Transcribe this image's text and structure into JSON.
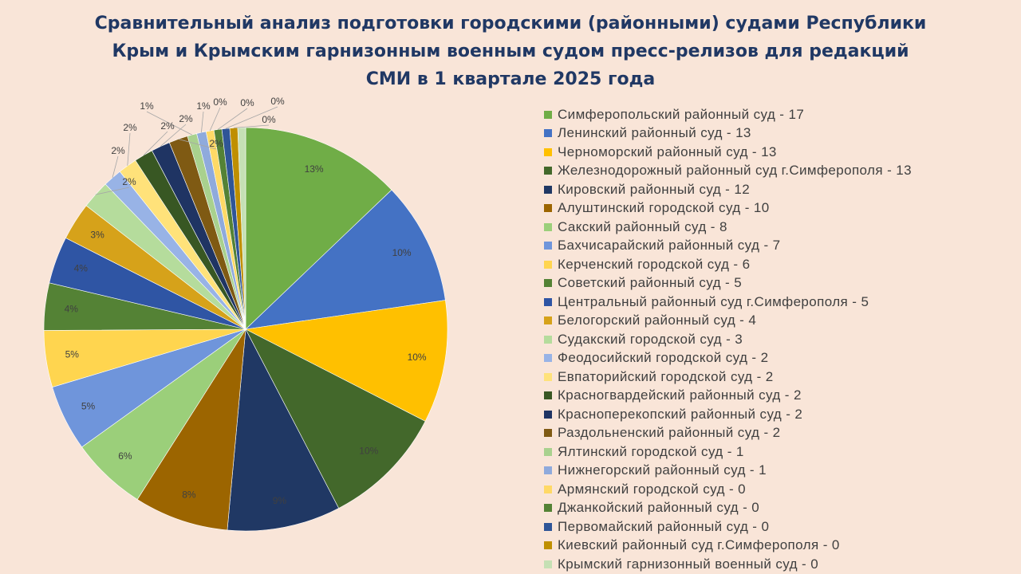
{
  "chart_data": {
    "type": "pie",
    "title_lines": [
      "Сравнительный анализ подготовки городскими (районными) судами Республики",
      "Крым и Крымским гарнизонным военным судом пресс-релизов для редакций",
      "СМИ в 1 квартале 2025 года"
    ],
    "legend_position": "right",
    "slices": [
      {
        "label": "Симферопольский районный суд - 17",
        "value": 17,
        "percent_label": "13%",
        "color": "#70ad47"
      },
      {
        "label": "Ленинский районный суд - 13",
        "value": 13,
        "percent_label": "10%",
        "color": "#4472c4"
      },
      {
        "label": "Черноморский районный суд - 13",
        "value": 13,
        "percent_label": "10%",
        "color": "#ffc000"
      },
      {
        "label": "Железнодорожный районный суд г.Симферополя - 13",
        "value": 13,
        "percent_label": "10%",
        "color": "#43682b"
      },
      {
        "label": "Кировский районный суд - 12",
        "value": 12,
        "percent_label": "9%",
        "color": "#203864"
      },
      {
        "label": "Алуштинский городской суд - 10",
        "value": 10,
        "percent_label": "8%",
        "color": "#9c6500"
      },
      {
        "label": "Сакский районный суд - 8",
        "value": 8,
        "percent_label": "6%",
        "color": "#9bcf7a"
      },
      {
        "label": "Бахчисарайский районный суд - 7",
        "value": 7,
        "percent_label": "5%",
        "color": "#6f95db"
      },
      {
        "label": "Керченский городской суд - 6",
        "value": 6,
        "percent_label": "5%",
        "color": "#ffd54f"
      },
      {
        "label": "Советский районный суд - 5",
        "value": 5,
        "percent_label": "4%",
        "color": "#548235"
      },
      {
        "label": "Центральный районный суд г.Симферополя - 5",
        "value": 5,
        "percent_label": "4%",
        "color": "#2f55a4"
      },
      {
        "label": "Белогорский районный суд - 4",
        "value": 4,
        "percent_label": "3%",
        "color": "#d6a21a"
      },
      {
        "label": "Судакский городской суд - 3",
        "value": 3,
        "percent_label": "2%",
        "color": "#b5dc9c"
      },
      {
        "label": "Феодосийский городской суд - 2",
        "value": 2,
        "percent_label": "2%",
        "color": "#98b3e6"
      },
      {
        "label": "Евпаторийский городской суд - 2",
        "value": 2,
        "percent_label": "2%",
        "color": "#ffe27a"
      },
      {
        "label": "Красногвардейский районный суд - 2",
        "value": 2,
        "percent_label": "2%",
        "color": "#385723"
      },
      {
        "label": "Красноперекопский районный суд - 2",
        "value": 2,
        "percent_label": "2%",
        "color": "#1f3463"
      },
      {
        "label": "Раздольненский районный суд - 2",
        "value": 2,
        "percent_label": "2%",
        "color": "#7f5a13"
      },
      {
        "label": "Ялтинский городской суд - 1",
        "value": 1,
        "percent_label": "1%",
        "color": "#a9d18e"
      },
      {
        "label": "Нижнегорский районный суд - 1",
        "value": 1,
        "percent_label": "1%",
        "color": "#8faadc"
      },
      {
        "label": "Армянский городской суд - 0",
        "value": 0,
        "percent_label": "0%",
        "color": "#ffd966"
      },
      {
        "label": "Джанкойский районный суд - 0",
        "value": 0,
        "percent_label": "0%",
        "color": "#548235"
      },
      {
        "label": "Первомайский районный суд - 0",
        "value": 0,
        "percent_label": "0%",
        "color": "#2f5597"
      },
      {
        "label": "Киевский районный суд г.Симферополя - 0",
        "value": 0,
        "percent_label": "0%",
        "color": "#bf8f00"
      },
      {
        "label": "Крымский гарнизонный военный суд - 0",
        "value": 0,
        "percent_label": "0%",
        "color": "#c5e0b4"
      }
    ]
  }
}
